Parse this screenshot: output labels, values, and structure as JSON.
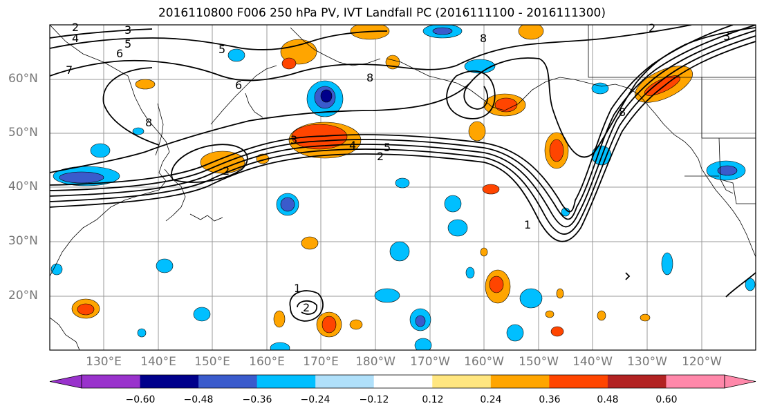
{
  "title": "2016110800 F006 250 hPa PV, IVT Landfall PC (2016111100 - 2016111300)",
  "lat_labels": [
    "60°N",
    "50°N",
    "40°N",
    "30°N",
    "20°N"
  ],
  "lon_labels": [
    "130°E",
    "140°E",
    "150°E",
    "160°E",
    "170°E",
    "180°W",
    "170°W",
    "160°W",
    "150°W",
    "140°W",
    "130°W",
    "120°W"
  ],
  "contour_labels": [
    "2",
    "3",
    "4",
    "5",
    "6",
    "7",
    "8",
    "6",
    "5",
    "8",
    "8",
    "3",
    "4",
    "5",
    "2",
    "2",
    "1",
    "2",
    "3",
    "8",
    "1",
    "2"
  ],
  "colorbar": {
    "ticks": [
      "−0.60",
      "−0.48",
      "−0.36",
      "−0.24",
      "−0.12",
      "0.12",
      "0.24",
      "0.36",
      "0.48",
      "0.60"
    ],
    "colors": [
      "#9932cc",
      "#00008b",
      "#3a5bcc",
      "#00bfff",
      "#b0e0fa",
      "#ffffff",
      "#ffe680",
      "#ffa500",
      "#ff4500",
      "#b22222",
      "#ff88aa",
      "#ff88aa"
    ]
  }
}
